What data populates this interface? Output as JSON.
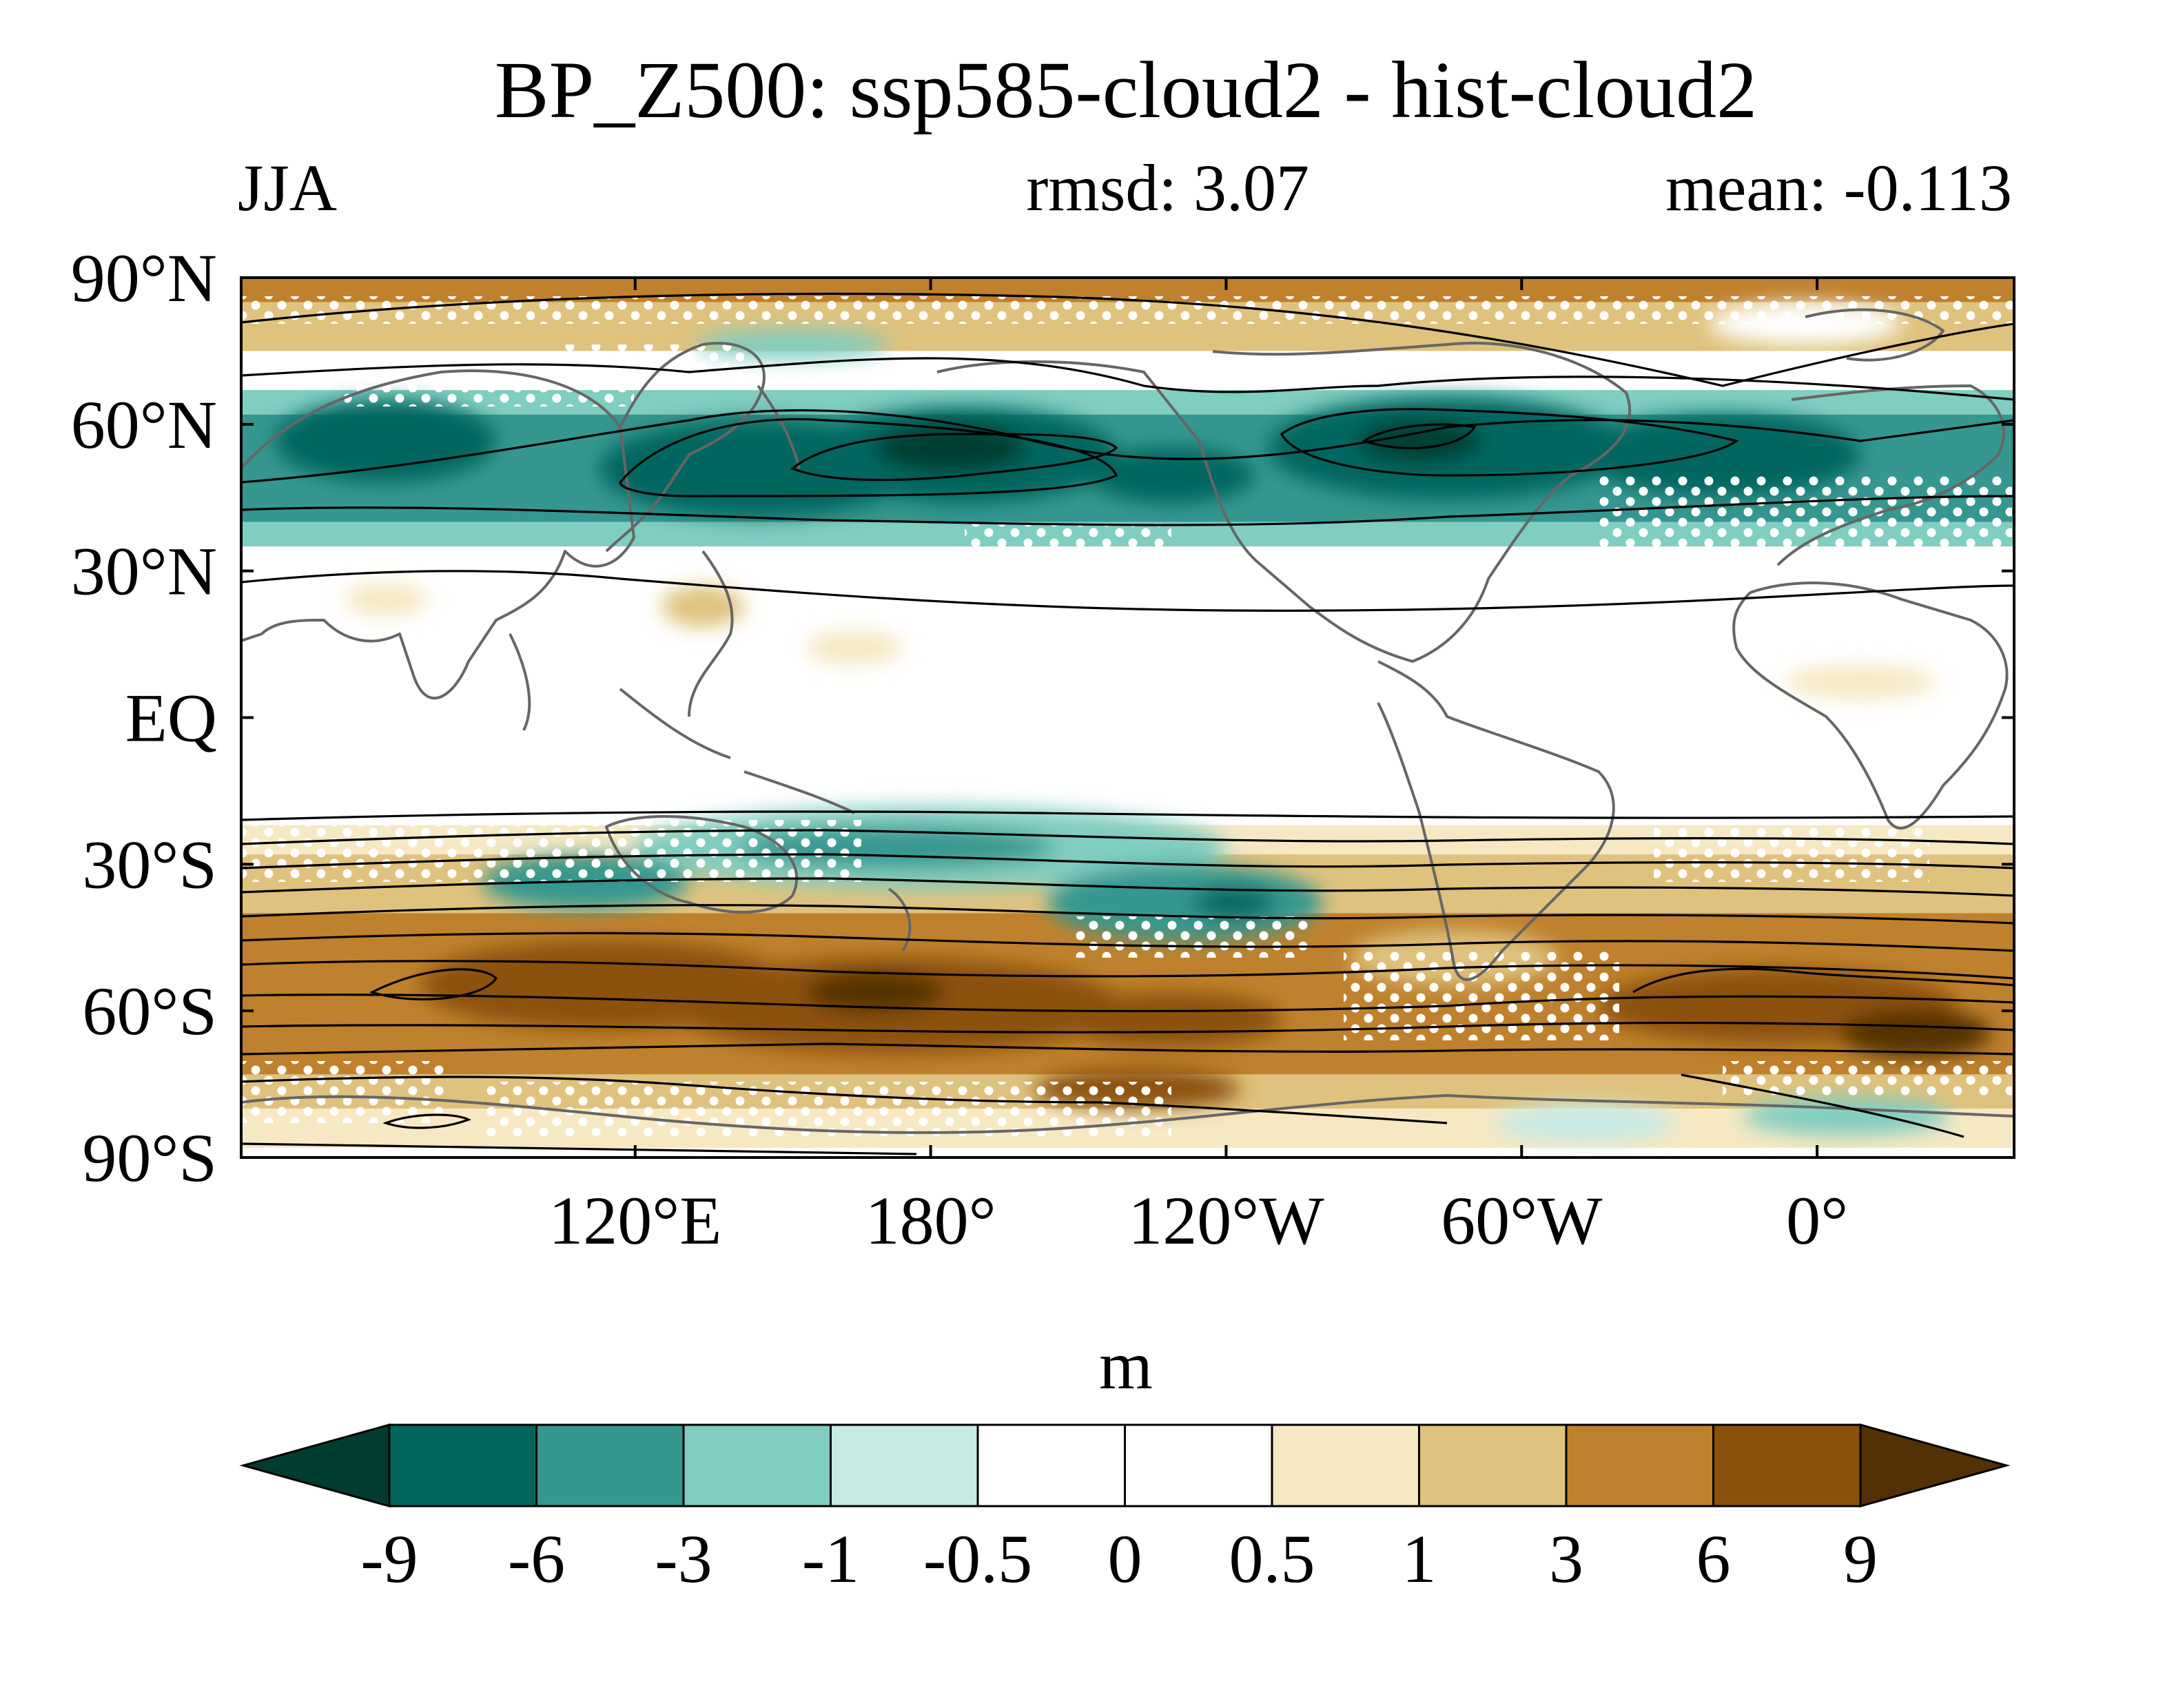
{
  "title": "BP_Z500: ssp585-cloud2 - hist-cloud2",
  "season": "JJA",
  "rmsd_label": "rmsd: 3.07",
  "mean_label": "mean: -0.113",
  "lat_ticks": [
    "90°N",
    "60°N",
    "30°N",
    "EQ",
    "30°S",
    "60°S",
    "90°S"
  ],
  "lon_ticks": [
    "120°E",
    "180°",
    "120°W",
    "60°W",
    "0°"
  ],
  "colorbar": {
    "units": "m",
    "levels": [
      "-9",
      "-6",
      "-3",
      "-1",
      "-0.5",
      "0",
      "0.5",
      "1",
      "3",
      "6",
      "9"
    ],
    "colors": [
      "#003c30",
      "#01665e",
      "#35978f",
      "#80cdc1",
      "#c7eae5",
      "#ffffff",
      "#ffffff",
      "#f6e8c3",
      "#dfc27d",
      "#bf812d",
      "#8c510a",
      "#543005"
    ]
  },
  "map": {
    "lon_range": [
      40,
      400
    ],
    "lat_range": [
      -90,
      90
    ],
    "coastline_color": "#666666",
    "contour_color": "#000000",
    "stipple_color": "#ffffff",
    "anomaly_bands": [
      {
        "lat": [
          85,
          90
        ],
        "color": "#bf812d"
      },
      {
        "lat": [
          75,
          85
        ],
        "color": "#dfc27d"
      },
      {
        "lat": [
          67,
          75
        ],
        "color": "#ffffff"
      },
      {
        "lat": [
          62,
          67
        ],
        "color": "#80cdc1"
      },
      {
        "lat": [
          40,
          62
        ],
        "color": "#35978f"
      },
      {
        "lat": [
          35,
          40
        ],
        "color": "#80cdc1"
      },
      {
        "lat": [
          -22,
          35
        ],
        "color": "#ffffff"
      },
      {
        "lat": [
          -28,
          -22
        ],
        "color": "#f6e8c3"
      },
      {
        "lat": [
          -40,
          -28
        ],
        "color": "#dfc27d"
      },
      {
        "lat": [
          -73,
          -40
        ],
        "color": "#bf812d"
      },
      {
        "lat": [
          -80,
          -73
        ],
        "color": "#dfc27d"
      },
      {
        "lat": [
          -88,
          -80
        ],
        "color": "#f6e8c3"
      }
    ]
  }
}
